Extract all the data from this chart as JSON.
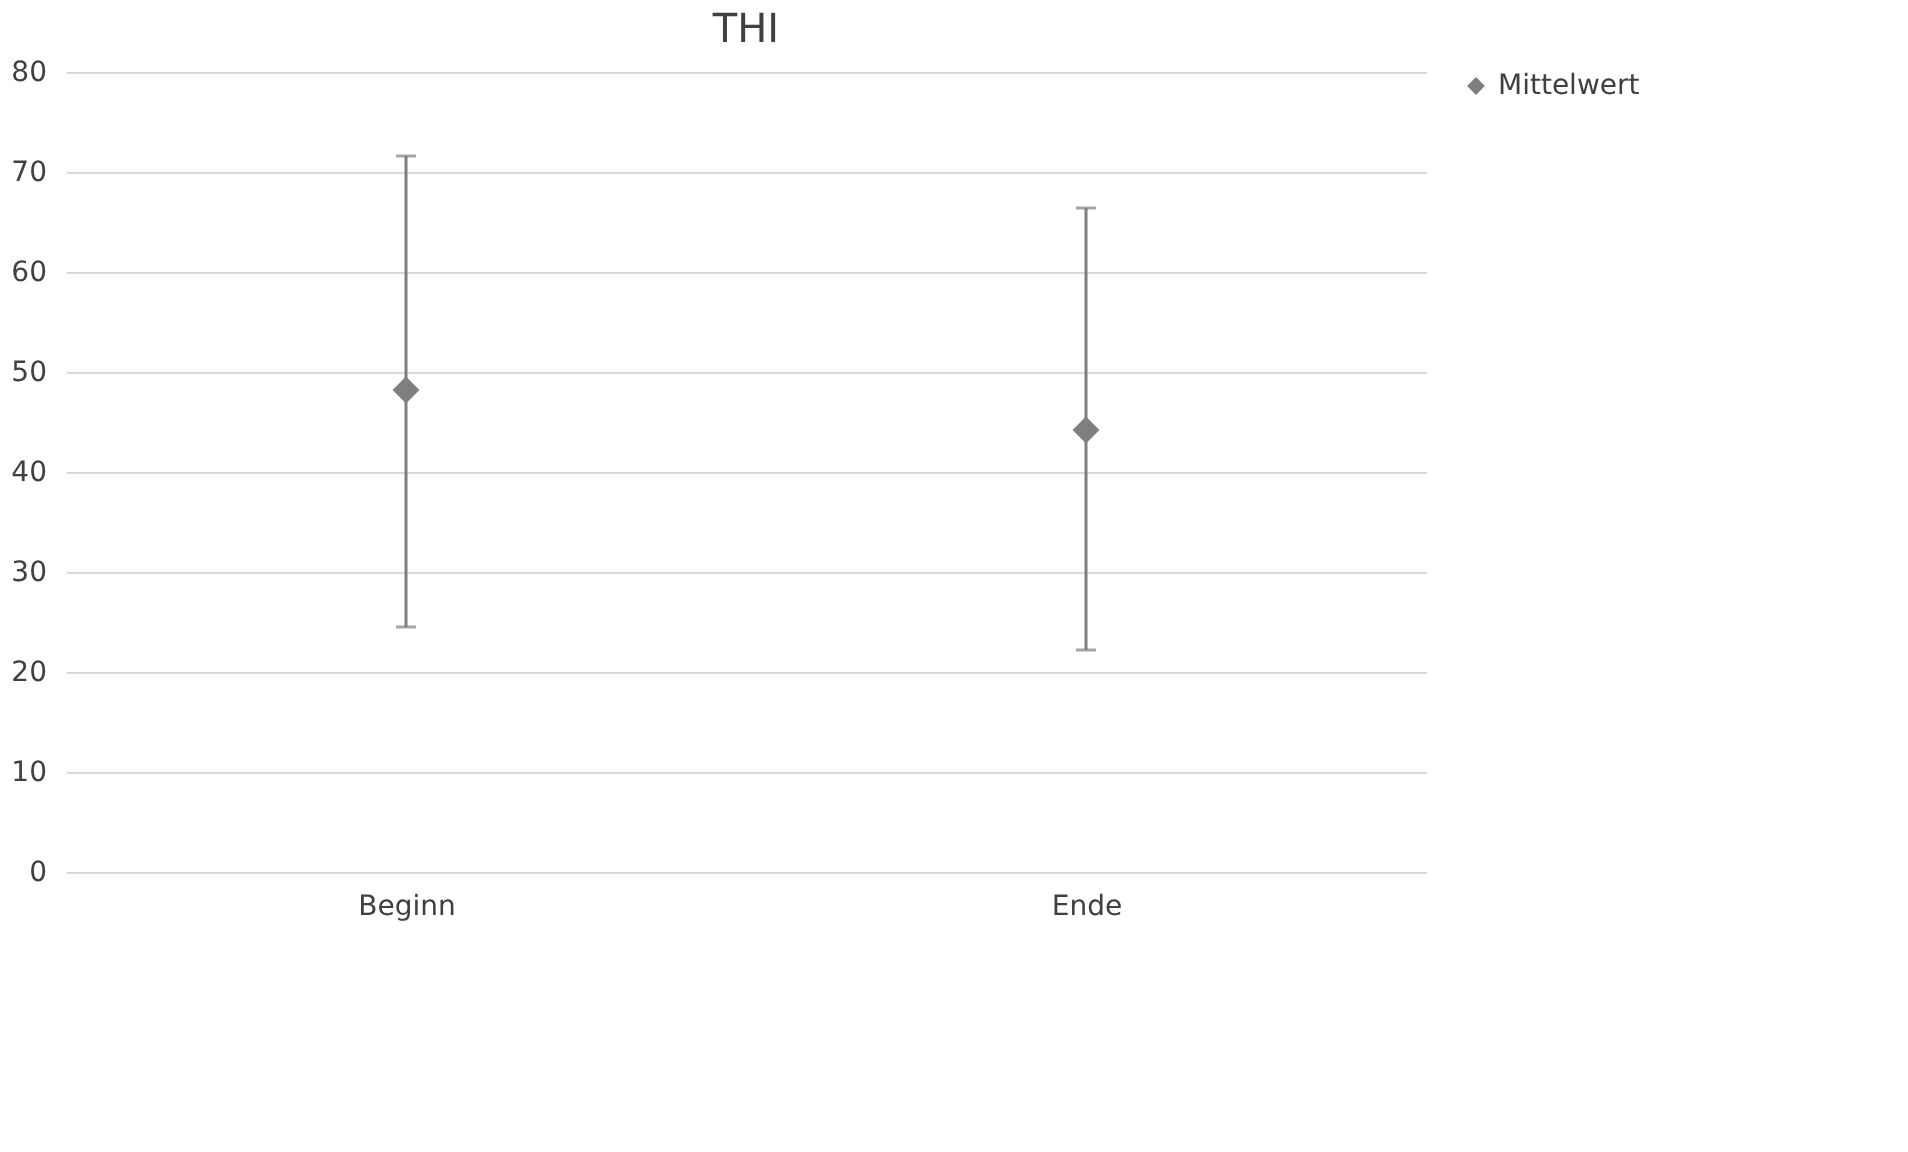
{
  "chart_data": {
    "type": "scatter",
    "title": "THI",
    "categories": [
      "Beginn",
      "Ende"
    ],
    "series": [
      {
        "name": "Mittelwert",
        "color": "#7f7f7f",
        "values": [
          48.2,
          44.2
        ],
        "errors": [
          [
            24.5,
            71.6
          ],
          [
            22.2,
            66.4
          ]
        ]
      }
    ],
    "ylim": [
      0,
      80
    ],
    "yticks": [
      0,
      10,
      20,
      30,
      40,
      50,
      60,
      70,
      80
    ],
    "grid": "y",
    "legend": "right",
    "marker": "diamond"
  }
}
